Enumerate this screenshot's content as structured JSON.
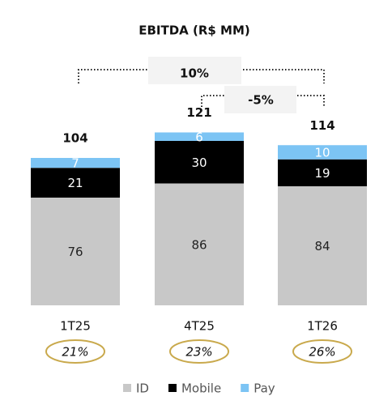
{
  "chart_data": {
    "type": "stacked_bar",
    "title": "EBITDA (R$ MM)",
    "categories": [
      "1T25",
      "4T25",
      "1T26"
    ],
    "series": [
      {
        "name": "ID",
        "color": "#c8c8c8",
        "values": [
          76,
          86,
          84
        ]
      },
      {
        "name": "Mobile",
        "color": "#000000",
        "values": [
          21,
          30,
          19
        ]
      },
      {
        "name": "Pay",
        "color": "#7cc4f4",
        "values": [
          7,
          6,
          10
        ]
      }
    ],
    "totals": [
      104,
      121,
      114
    ],
    "margins": [
      "21%",
      "23%",
      "26%"
    ],
    "annotations": [
      "10%",
      "-5%"
    ]
  }
}
